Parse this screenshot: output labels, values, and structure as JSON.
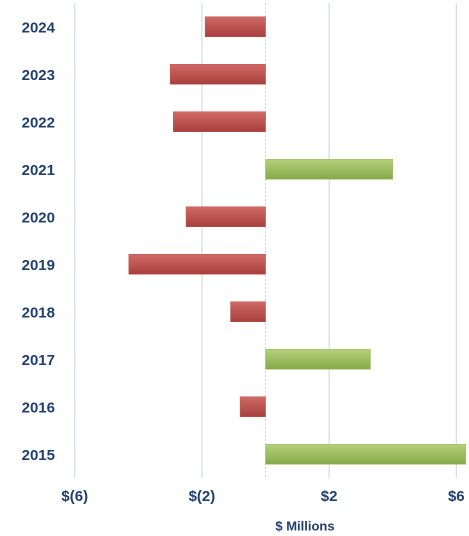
{
  "chart_data": {
    "type": "bar",
    "orientation": "horizontal",
    "categories": [
      "2024",
      "2023",
      "2022",
      "2021",
      "2020",
      "2019",
      "2018",
      "2017",
      "2016",
      "2015"
    ],
    "values": [
      -1.9,
      -3.0,
      -2.9,
      4.0,
      -2.5,
      -4.3,
      -1.1,
      3.3,
      -0.8,
      6.3
    ],
    "positive_color": "#9bbb59",
    "negative_color": "#c0504d",
    "xlabel": "$ Millions",
    "xlim": [
      -6.15,
      6.4
    ],
    "xticks": [
      {
        "value": -6,
        "label": "$(6)"
      },
      {
        "value": -2,
        "label": "$(2)"
      },
      {
        "value": 2,
        "label": "$2"
      },
      {
        "value": 6,
        "label": "$6"
      }
    ],
    "grid": true
  }
}
